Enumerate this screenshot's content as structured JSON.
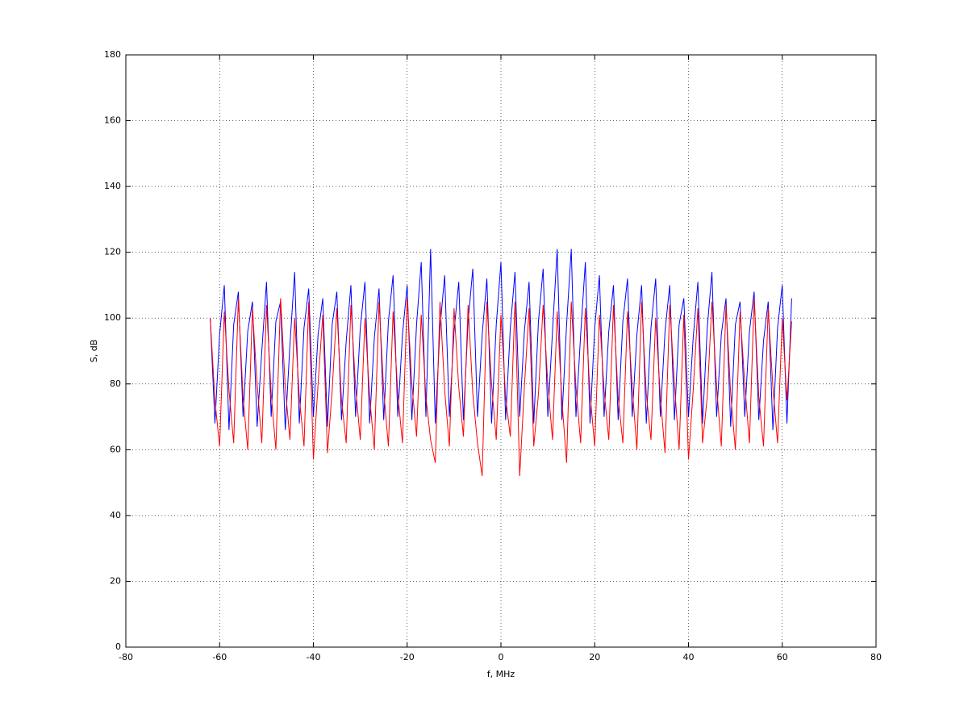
{
  "chart_data": {
    "type": "line",
    "xlabel": "f, MHz",
    "ylabel": "S, dB",
    "x": [
      -62,
      -61,
      -60,
      -59,
      -58,
      -57,
      -56,
      -55,
      -54,
      -53,
      -52,
      -51,
      -50,
      -49,
      -48,
      -47,
      -46,
      -45,
      -44,
      -43,
      -42,
      -41,
      -40,
      -39,
      -38,
      -37,
      -36,
      -35,
      -34,
      -33,
      -32,
      -31,
      -30,
      -29,
      -28,
      -27,
      -26,
      -25,
      -24,
      -23,
      -22,
      -21,
      -20,
      -19,
      -18,
      -17,
      -16,
      -15,
      -14,
      -13,
      -12,
      -11,
      -10,
      -9,
      -8,
      -7,
      -6,
      -5,
      -4,
      -3,
      -2,
      -1,
      0,
      1,
      2,
      3,
      4,
      5,
      6,
      7,
      8,
      9,
      10,
      11,
      12,
      13,
      14,
      15,
      16,
      17,
      18,
      19,
      20,
      21,
      22,
      23,
      24,
      25,
      26,
      27,
      28,
      29,
      30,
      31,
      32,
      33,
      34,
      35,
      36,
      37,
      38,
      39,
      40,
      41,
      42,
      43,
      44,
      45,
      46,
      47,
      48,
      49,
      50,
      51,
      52,
      53,
      54,
      55,
      56,
      57,
      58,
      59,
      60,
      61,
      62
    ],
    "series": [
      {
        "color": "#0000ff",
        "values": [
          100,
          68,
          95,
          110,
          66,
          98,
          108,
          70,
          96,
          105,
          67,
          90,
          111,
          70,
          99,
          105,
          66,
          92,
          114,
          68,
          97,
          109,
          70,
          95,
          106,
          67,
          98,
          108,
          69,
          93,
          110,
          70,
          97,
          111,
          68,
          94,
          109,
          69,
          99,
          113,
          70,
          95,
          110,
          69,
          98,
          117,
          70,
          121,
          68,
          97,
          113,
          70,
          96,
          111,
          69,
          99,
          115,
          70,
          95,
          112,
          68,
          98,
          117,
          69,
          97,
          114,
          70,
          96,
          111,
          68,
          99,
          115,
          70,
          96,
          121,
          69,
          98,
          121,
          70,
          95,
          117,
          68,
          97,
          113,
          70,
          96,
          110,
          69,
          99,
          112,
          70,
          95,
          110,
          68,
          97,
          112,
          70,
          96,
          110,
          69,
          98,
          106,
          70,
          94,
          111,
          68,
          97,
          114,
          70,
          95,
          106,
          67,
          98,
          105,
          70,
          96,
          108,
          69,
          93,
          105,
          66,
          97,
          110,
          68,
          106
        ]
      },
      {
        "color": "#ff0000",
        "values": [
          100,
          75,
          61,
          102,
          78,
          62,
          106,
          76,
          60,
          103,
          80,
          62,
          104,
          77,
          60,
          106,
          79,
          63,
          100,
          76,
          61,
          105,
          57,
          80,
          101,
          59,
          78,
          103,
          75,
          62,
          104,
          79,
          63,
          100,
          76,
          60,
          105,
          78,
          61,
          102,
          77,
          62,
          106,
          80,
          64,
          101,
          76,
          63,
          56,
          105,
          78,
          61,
          103,
          79,
          64,
          104,
          77,
          62,
          52,
          105,
          80,
          63,
          101,
          76,
          64,
          105,
          52,
          79,
          103,
          61,
          77,
          104,
          80,
          63,
          102,
          75,
          56,
          105,
          79,
          62,
          103,
          77,
          61,
          101,
          78,
          63,
          104,
          76,
          62,
          102,
          79,
          60,
          105,
          77,
          63,
          100,
          76,
          59,
          104,
          80,
          60,
          101,
          57,
          78,
          103,
          62,
          76,
          105,
          79,
          61,
          104,
          77,
          60,
          102,
          80,
          62,
          106,
          76,
          61,
          103,
          79,
          62,
          100,
          75,
          99
        ]
      }
    ],
    "xlim": [
      -80,
      80
    ],
    "ylim": [
      0,
      180
    ],
    "xticks": [
      -80,
      -60,
      -40,
      -20,
      0,
      20,
      40,
      60,
      80
    ],
    "yticks": [
      0,
      20,
      40,
      60,
      80,
      100,
      120,
      140,
      160,
      180
    ],
    "grid": true
  }
}
